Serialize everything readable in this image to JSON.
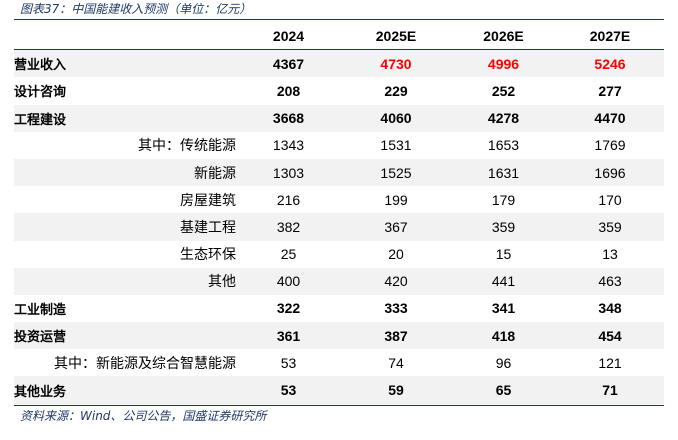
{
  "caption": "图表37：中国能建收入预测（单位：亿元）",
  "source": "资料来源：Wind、公司公告，国盛证券研究所",
  "columns": [
    "2024",
    "2025E",
    "2026E",
    "2027E"
  ],
  "rows": [
    {
      "label": "营业收入",
      "values": [
        "4367",
        "4730",
        "4996",
        "5246"
      ]
    },
    {
      "label": "设计咨询",
      "values": [
        "208",
        "229",
        "252",
        "277"
      ]
    },
    {
      "label": "工程建设",
      "values": [
        "3668",
        "4060",
        "4278",
        "4470"
      ]
    },
    {
      "label": "其中：传统能源",
      "values": [
        "1343",
        "1531",
        "1653",
        "1769"
      ]
    },
    {
      "label": "新能源",
      "values": [
        "1303",
        "1525",
        "1631",
        "1696"
      ]
    },
    {
      "label": "房屋建筑",
      "values": [
        "216",
        "199",
        "179",
        "170"
      ]
    },
    {
      "label": "基建工程",
      "values": [
        "382",
        "367",
        "359",
        "359"
      ]
    },
    {
      "label": "生态环保",
      "values": [
        "25",
        "20",
        "15",
        "13"
      ]
    },
    {
      "label": "其他",
      "values": [
        "400",
        "420",
        "441",
        "463"
      ]
    },
    {
      "label": "工业制造",
      "values": [
        "322",
        "333",
        "341",
        "348"
      ]
    },
    {
      "label": "投资运营",
      "values": [
        "361",
        "387",
        "418",
        "454"
      ]
    },
    {
      "label": "其中：新能源及综合智慧能源",
      "values": [
        "53",
        "74",
        "96",
        "121"
      ]
    },
    {
      "label": "其他业务",
      "values": [
        "53",
        "59",
        "65",
        "71"
      ]
    }
  ],
  "colors": {
    "highlight": "#FF0000",
    "accent": "#1F3864",
    "stripe": "#F2F2F2"
  }
}
